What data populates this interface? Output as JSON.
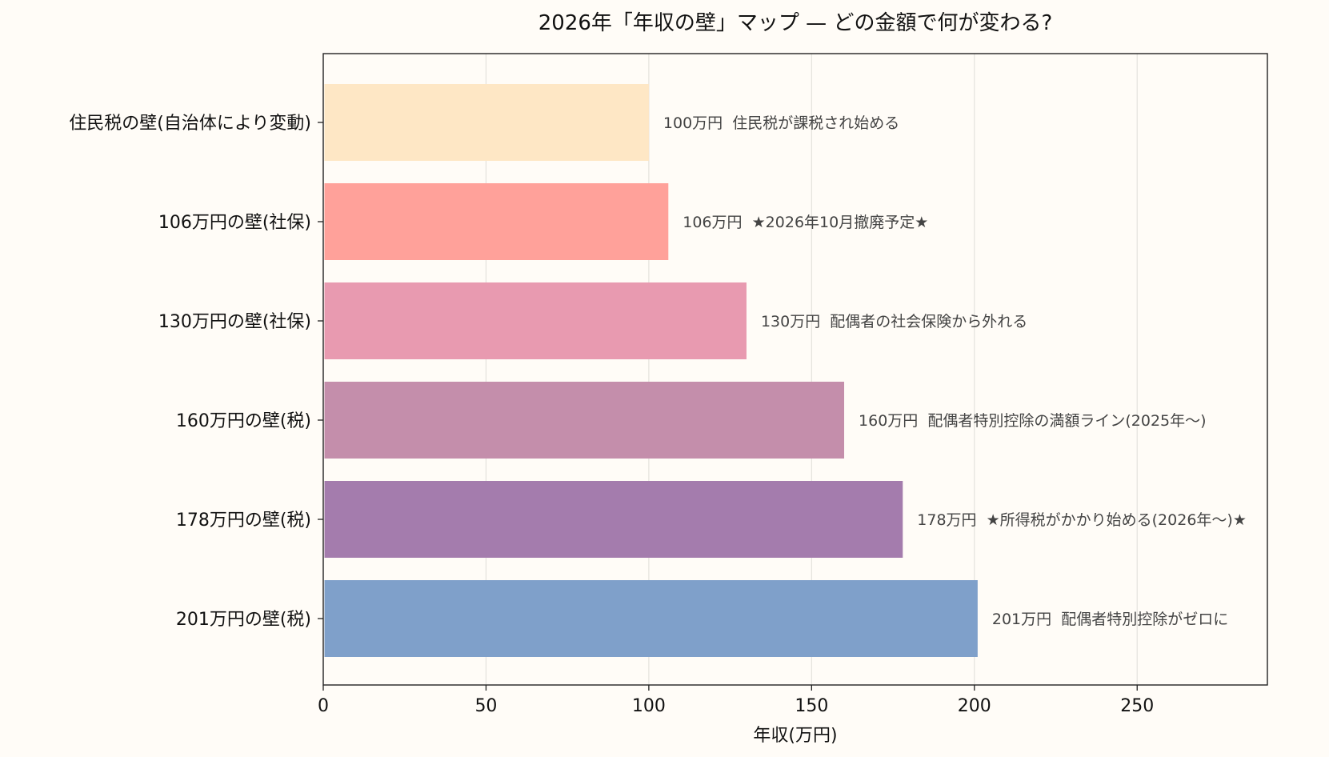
{
  "chart_data": {
    "type": "bar",
    "orientation": "horizontal",
    "title": "2026年「年収の壁」マップ — どの金額で何が変わる?",
    "xlabel": "年収(万円)",
    "ylabel": "",
    "xlim": [
      0,
      290
    ],
    "xticks": [
      0,
      50,
      100,
      150,
      200,
      250
    ],
    "grid": "vertical",
    "categories": [
      "住民税の壁(自治体により変動)",
      "106万円の壁(社保)",
      "130万円の壁(社保)",
      "160万円の壁(税)",
      "178万円の壁(税)",
      "201万円の壁(税)"
    ],
    "values": [
      100,
      106,
      130,
      160,
      178,
      201
    ],
    "annotations": [
      "100万円  住民税が課税され始める",
      "106万円  ★2026年10月撤廃予定★",
      "130万円  配偶者の社会保険から外れる",
      "160万円  配偶者特別控除の満額ライン(2025年〜)",
      "178万円  ★所得税がかかり始める(2026年〜)★",
      "201万円  配偶者特別控除がゼロに"
    ],
    "colors": [
      "#fee7c5",
      "#ffa19a",
      "#e89ab0",
      "#c48eab",
      "#a47cad",
      "#7fa0ca"
    ]
  }
}
